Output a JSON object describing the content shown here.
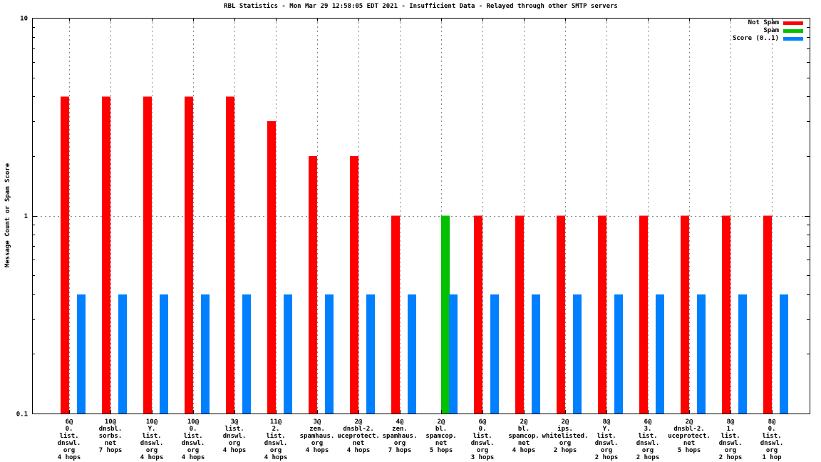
{
  "title": "RBL Statistics - Mon Mar 29 12:58:05 EDT 2021 - Insufficient Data - Relayed through other SMTP servers",
  "y_axis": {
    "label": "Message Count or Spam Score",
    "ticks": [
      {
        "label": "10",
        "value": 10
      },
      {
        "label": "1",
        "value": 1
      },
      {
        "label": "0.1",
        "value": 0.1
      }
    ]
  },
  "legend": {
    "position": "top-right"
  },
  "chart_data": {
    "type": "bar",
    "scale": "log",
    "ylim": [
      0.1,
      10
    ],
    "grid": {
      "vertical_at_each_category": true,
      "horizontal_at": 1
    },
    "title": "RBL Statistics - Mon Mar 29 12:58:05 EDT 2021 - Insufficient Data - Relayed through other SMTP servers",
    "ylabel": "Message Count or Spam Score",
    "categories": [
      [
        "6@",
        "0.",
        "list.",
        "dnswl.",
        "org",
        "4 hops"
      ],
      [
        "10@",
        "dnsbl.",
        "sorbs.",
        "net",
        "7 hops"
      ],
      [
        "10@",
        "Y.",
        "list.",
        "dnswl.",
        "org",
        "4 hops"
      ],
      [
        "10@",
        "0.",
        "list.",
        "dnswl.",
        "org",
        "4 hops"
      ],
      [
        "3@",
        "list.",
        "dnswl.",
        "org",
        "4 hops"
      ],
      [
        "11@",
        "2.",
        "list.",
        "dnswl.",
        "org",
        "4 hops"
      ],
      [
        "3@",
        "zen.",
        "spamhaus.",
        "org",
        "4 hops"
      ],
      [
        "2@",
        "dnsbl-2.",
        "uceprotect.",
        "net",
        "4 hops"
      ],
      [
        "4@",
        "zen.",
        "spamhaus.",
        "org",
        "7 hops"
      ],
      [
        "2@",
        "bl.",
        "spamcop.",
        "net",
        "5 hops"
      ],
      [
        "6@",
        "0.",
        "list.",
        "dnswl.",
        "org",
        "3 hops"
      ],
      [
        "2@",
        "bl.",
        "spamcop.",
        "net",
        "4 hops"
      ],
      [
        "2@",
        "ips.",
        "whitelisted.",
        "org",
        "2 hops"
      ],
      [
        "8@",
        "Y.",
        "list.",
        "dnswl.",
        "org",
        "2 hops"
      ],
      [
        "6@",
        "3.",
        "list.",
        "dnswl.",
        "org",
        "2 hops"
      ],
      [
        "2@",
        "dnsbl-2.",
        "uceprotect.",
        "net",
        "5 hops"
      ],
      [
        "8@",
        "1.",
        "list.",
        "dnswl.",
        "org",
        "2 hops"
      ],
      [
        "8@",
        "0.",
        "list.",
        "dnswl.",
        "org",
        "1 hop"
      ]
    ],
    "series": [
      {
        "name": "Not Spam",
        "color": "#ff0000",
        "values": [
          4,
          4,
          4,
          4,
          4,
          3,
          2,
          2,
          1,
          0,
          1,
          1,
          1,
          1,
          1,
          1,
          1,
          1
        ]
      },
      {
        "name": "Spam",
        "color": "#00c000",
        "values": [
          0,
          0,
          0,
          0,
          0,
          0,
          0,
          0,
          0,
          1,
          0,
          0,
          0,
          0,
          0,
          0,
          0,
          0
        ]
      },
      {
        "name": "Score (0..1)",
        "color": "#0080ff",
        "values": [
          0.4,
          0.4,
          0.4,
          0.4,
          0.4,
          0.4,
          0.4,
          0.4,
          0.4,
          0.4,
          0.4,
          0.4,
          0.4,
          0.4,
          0.4,
          0.4,
          0.4,
          0.4
        ]
      }
    ]
  }
}
